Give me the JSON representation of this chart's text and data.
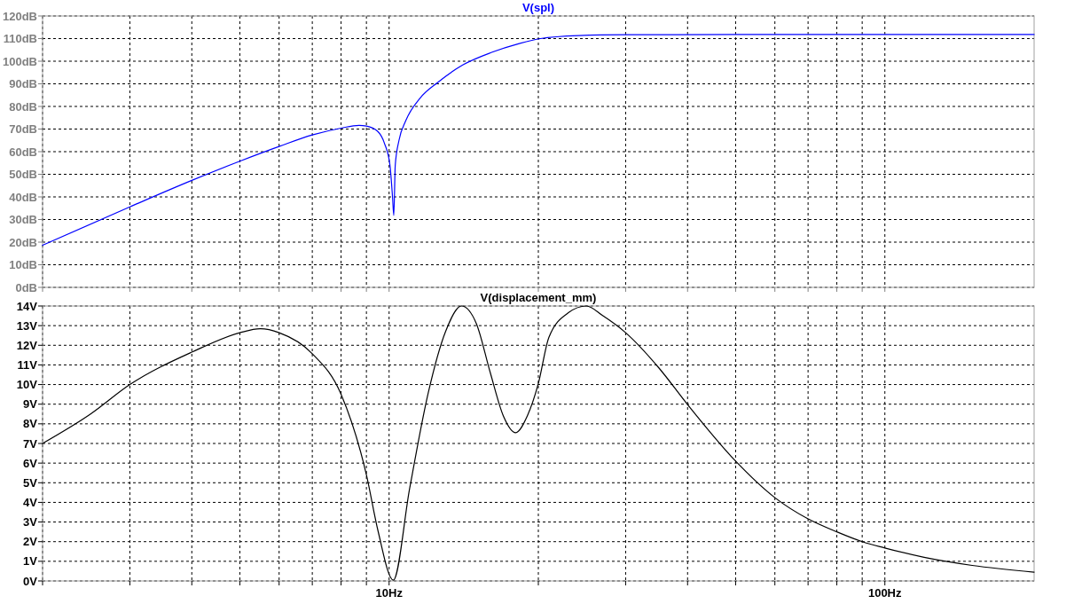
{
  "chart_data": [
    {
      "type": "line",
      "title": "V(spl)",
      "log": "x",
      "grid": true,
      "tick_labels": "y",
      "xlim": [
        2,
        200
      ],
      "xticks": [
        {
          "value": 2,
          "label": null
        },
        {
          "value": 3,
          "label": null
        },
        {
          "value": 4,
          "label": null
        },
        {
          "value": 5,
          "label": null
        },
        {
          "value": 6,
          "label": null
        },
        {
          "value": 7,
          "label": null
        },
        {
          "value": 8,
          "label": null
        },
        {
          "value": 9,
          "label": null
        },
        {
          "value": 10,
          "label": null
        },
        {
          "value": 20,
          "label": null
        },
        {
          "value": 30,
          "label": null
        },
        {
          "value": 40,
          "label": null
        },
        {
          "value": 50,
          "label": null
        },
        {
          "value": 60,
          "label": null
        },
        {
          "value": 70,
          "label": null
        },
        {
          "value": 80,
          "label": null
        },
        {
          "value": 90,
          "label": null
        },
        {
          "value": 100,
          "label": null
        }
      ],
      "ylim": [
        0,
        120
      ],
      "yticks": [
        {
          "value": 0,
          "label": "0dB"
        },
        {
          "value": 10,
          "label": "10dB"
        },
        {
          "value": 20,
          "label": "20dB"
        },
        {
          "value": 30,
          "label": "30dB"
        },
        {
          "value": 40,
          "label": "40dB"
        },
        {
          "value": 50,
          "label": "50dB"
        },
        {
          "value": 60,
          "label": "60dB"
        },
        {
          "value": 70,
          "label": "70dB"
        },
        {
          "value": 80,
          "label": "80dB"
        },
        {
          "value": 90,
          "label": "90dB"
        },
        {
          "value": 100,
          "label": "100dB"
        },
        {
          "value": 110,
          "label": "110dB"
        },
        {
          "value": 120,
          "label": "120dB"
        }
      ],
      "x": [
        2,
        3,
        4,
        5,
        6,
        7,
        8,
        8.7,
        9,
        9.48,
        9.79,
        10.04,
        10.16,
        10.22,
        10.29,
        10.47,
        10.8,
        11.55,
        12.55,
        14.1,
        16.1,
        18.3,
        20.2,
        24.1,
        30,
        50,
        100,
        200
      ],
      "series": [
        {
          "color": "#0000ff",
          "values": [
            18.6,
            35.6,
            47.3,
            55.8,
            62.3,
            67.4,
            70.4,
            71.6,
            71.3,
            69,
            63.6,
            54,
            40,
            31.8,
            54,
            65,
            73.6,
            83.7,
            90.7,
            98.4,
            103.9,
            107.8,
            110,
            111.3,
            111.7,
            111.8,
            111.8,
            111.8
          ]
        }
      ]
    },
    {
      "type": "line",
      "title": "V(displacement_mm)",
      "log": "x",
      "grid": true,
      "xlim": [
        2,
        200
      ],
      "xticks": [
        {
          "value": 2,
          "label": null
        },
        {
          "value": 3,
          "label": null
        },
        {
          "value": 4,
          "label": null
        },
        {
          "value": 5,
          "label": null
        },
        {
          "value": 6,
          "label": null
        },
        {
          "value": 7,
          "label": null
        },
        {
          "value": 8,
          "label": null
        },
        {
          "value": 9,
          "label": null
        },
        {
          "value": 10,
          "label": "10Hz"
        },
        {
          "value": 20,
          "label": null
        },
        {
          "value": 30,
          "label": null
        },
        {
          "value": 40,
          "label": null
        },
        {
          "value": 50,
          "label": null
        },
        {
          "value": 60,
          "label": null
        },
        {
          "value": 70,
          "label": null
        },
        {
          "value": 80,
          "label": null
        },
        {
          "value": 90,
          "label": null
        },
        {
          "value": 100,
          "label": "100Hz"
        }
      ],
      "ylim": [
        0,
        14
      ],
      "yticks": [
        {
          "value": 0,
          "label": "0V"
        },
        {
          "value": 1,
          "label": "1V"
        },
        {
          "value": 2,
          "label": "2V"
        },
        {
          "value": 3,
          "label": "3V"
        },
        {
          "value": 4,
          "label": "4V"
        },
        {
          "value": 5,
          "label": "5V"
        },
        {
          "value": 6,
          "label": "6V"
        },
        {
          "value": 7,
          "label": "7V"
        },
        {
          "value": 8,
          "label": "8V"
        },
        {
          "value": 9,
          "label": "9V"
        },
        {
          "value": 10,
          "label": "10V"
        },
        {
          "value": 11,
          "label": "11V"
        },
        {
          "value": 12,
          "label": "12V"
        },
        {
          "value": 13,
          "label": "13V"
        },
        {
          "value": 14,
          "label": "14V"
        }
      ],
      "x": [
        2,
        2.5,
        3,
        4,
        5,
        5.5,
        6,
        7,
        8,
        9,
        9.5,
        10.2,
        11,
        12,
        13,
        14,
        15,
        16,
        17,
        18,
        19,
        20,
        21,
        23,
        25,
        27,
        30,
        35,
        40,
        50,
        60,
        70,
        80,
        90,
        100,
        120,
        150,
        200
      ],
      "series": [
        {
          "color": "#000000",
          "values": [
            7,
            8.5,
            10,
            11.65,
            12.64,
            12.84,
            12.64,
            11.57,
            9.51,
            5.4,
            2.54,
            0.04,
            4.7,
            9.6,
            12.7,
            14,
            13.1,
            10.6,
            8.4,
            7.55,
            8.4,
            10.05,
            12.4,
            13.66,
            14,
            13.5,
            12.64,
            10.85,
            8.98,
            6.1,
            4.24,
            3.16,
            2.5,
            2,
            1.68,
            1.2,
            0.79,
            0.45
          ]
        }
      ]
    }
  ]
}
